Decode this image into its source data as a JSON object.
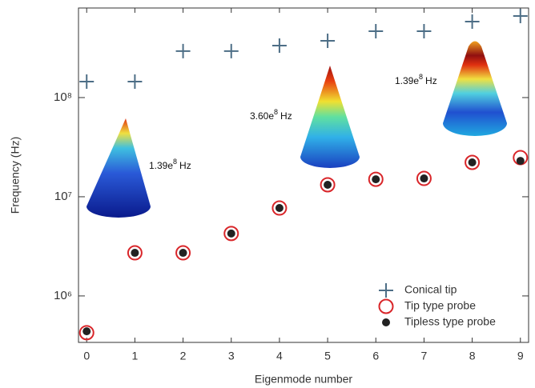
{
  "chart_data": {
    "type": "scatter",
    "x_label": "Eigenmode number",
    "y_label": "Frequency (Hz)",
    "log_y": true,
    "legend": "lower right",
    "x": [
      0,
      1,
      2,
      3,
      4,
      5,
      6,
      7,
      8,
      9
    ],
    "xlim": [
      -0.17,
      9.17
    ],
    "xticks": [
      0,
      1,
      2,
      3,
      4,
      5,
      6,
      7,
      8,
      9
    ],
    "ylim": [
      340000,
      800000000
    ],
    "yticks": [
      {
        "value": 1000000,
        "label": "10⁶"
      },
      {
        "value": 10000000,
        "label": "10⁷"
      },
      {
        "value": 100000000,
        "label": "10⁸"
      }
    ],
    "series": [
      {
        "name": "Conical tip",
        "marker": "plus",
        "color": "#4d6e86",
        "values": [
          145000000,
          145000000,
          294000000,
          294000000,
          334000000,
          374000000,
          467000000,
          467000000,
          584000000,
          665000000
        ]
      },
      {
        "name": "Tip type probe",
        "marker": "open-circle",
        "color": "#d9262a",
        "values": [
          426000,
          2720000,
          2720000,
          4260000,
          7700000,
          13200000,
          15000000,
          15300000,
          22200000,
          24800000
        ]
      },
      {
        "name": "Tipless type probe",
        "marker": "dot",
        "color": "#222222",
        "values": [
          440000,
          2720000,
          2720000,
          4260000,
          7700000,
          13200000,
          15000000,
          15300000,
          22200000,
          23000000
        ]
      }
    ],
    "annotations": [
      {
        "base": "1.39e",
        "exp": "8",
        "unit": "Hz"
      },
      {
        "base": "3.60e",
        "exp": "8",
        "unit": "Hz"
      },
      {
        "base": "1.39e",
        "exp": "8",
        "unit": "Hz"
      }
    ]
  }
}
